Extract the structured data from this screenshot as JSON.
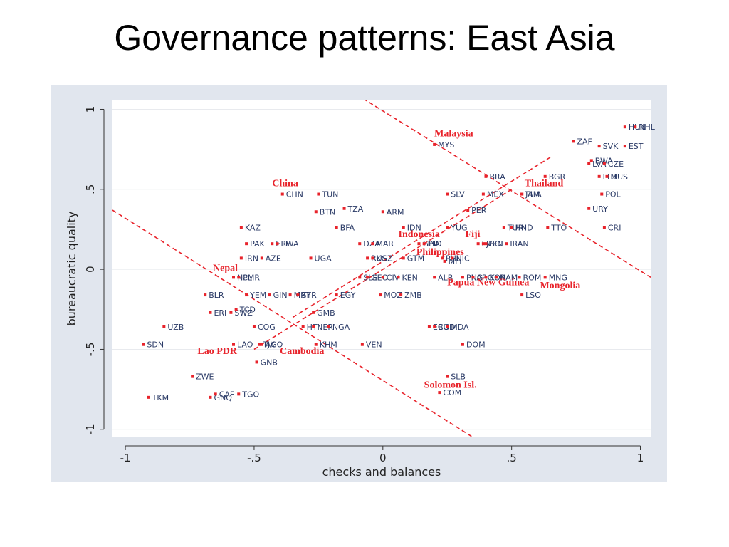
{
  "slide": {
    "title": "Governance patterns: East Asia"
  },
  "chart_data": {
    "type": "scatter",
    "xlabel": "checks and balances",
    "ylabel": "bureaucratic quality",
    "xlim": [
      -1.05,
      1.04
    ],
    "ylim": [
      -1.05,
      1.06
    ],
    "xticks": [
      {
        "v": -1,
        "label": "-1"
      },
      {
        "v": -0.5,
        "label": "-.5"
      },
      {
        "v": 0,
        "label": "0"
      },
      {
        "v": 0.5,
        "label": ".5"
      },
      {
        "v": 1,
        "label": "1"
      }
    ],
    "yticks": [
      {
        "v": -1,
        "label": "-1"
      },
      {
        "v": -0.5,
        "label": "-.5"
      },
      {
        "v": 0,
        "label": "0"
      },
      {
        "v": 0.5,
        "label": ".5"
      },
      {
        "v": 1,
        "label": "1"
      }
    ],
    "grid": true,
    "colors": {
      "points": "#e8232b",
      "labels": "#2a3a66",
      "highlight": "#e8232b",
      "plot_bg": "#ffffff",
      "frame_bg": "#e1e6ee"
    },
    "points": [
      {
        "label": "HUN",
        "x": 0.94,
        "y": 0.89
      },
      {
        "label": "NHL",
        "x": 0.98,
        "y": 0.89
      },
      {
        "label": "EST",
        "x": 0.94,
        "y": 0.77
      },
      {
        "label": "ZAF",
        "x": 0.74,
        "y": 0.8
      },
      {
        "label": "SVK",
        "x": 0.84,
        "y": 0.77
      },
      {
        "label": "BWA",
        "x": 0.81,
        "y": 0.68
      },
      {
        "label": "LVA",
        "x": 0.8,
        "y": 0.66
      },
      {
        "label": "CZE",
        "x": 0.86,
        "y": 0.66
      },
      {
        "label": "LTU",
        "x": 0.84,
        "y": 0.58
      },
      {
        "label": "MUS",
        "x": 0.87,
        "y": 0.58
      },
      {
        "label": "POL",
        "x": 0.85,
        "y": 0.47
      },
      {
        "label": "URY",
        "x": 0.8,
        "y": 0.38
      },
      {
        "label": "CRI",
        "x": 0.86,
        "y": 0.26
      },
      {
        "label": "BGR",
        "x": 0.63,
        "y": 0.58
      },
      {
        "label": "BRA",
        "x": 0.4,
        "y": 0.58
      },
      {
        "label": "MYS",
        "x": 0.2,
        "y": 0.78
      },
      {
        "label": "SLV",
        "x": 0.25,
        "y": 0.47
      },
      {
        "label": "MEX",
        "x": 0.39,
        "y": 0.47
      },
      {
        "label": "THA",
        "x": 0.54,
        "y": 0.47
      },
      {
        "label": "JAM",
        "x": 0.54,
        "y": 0.47
      },
      {
        "label": "PER",
        "x": 0.33,
        "y": 0.37
      },
      {
        "label": "YUG",
        "x": 0.25,
        "y": 0.26
      },
      {
        "label": "TUR",
        "x": 0.47,
        "y": 0.26
      },
      {
        "label": "HND",
        "x": 0.5,
        "y": 0.26
      },
      {
        "label": "TTO",
        "x": 0.64,
        "y": 0.26
      },
      {
        "label": "IDN",
        "x": 0.08,
        "y": 0.26
      },
      {
        "label": "CHN",
        "x": -0.39,
        "y": 0.47
      },
      {
        "label": "TUN",
        "x": -0.25,
        "y": 0.47
      },
      {
        "label": "TZA",
        "x": -0.15,
        "y": 0.38
      },
      {
        "label": "BTN",
        "x": -0.26,
        "y": 0.36
      },
      {
        "label": "ARM",
        "x": 0.0,
        "y": 0.36
      },
      {
        "label": "KAZ",
        "x": -0.55,
        "y": 0.26
      },
      {
        "label": "BFA",
        "x": -0.18,
        "y": 0.26
      },
      {
        "label": "PAK",
        "x": -0.53,
        "y": 0.16
      },
      {
        "label": "ETH",
        "x": -0.43,
        "y": 0.16
      },
      {
        "label": "RWA",
        "x": -0.41,
        "y": 0.16
      },
      {
        "label": "DZA",
        "x": -0.09,
        "y": 0.16
      },
      {
        "label": "MAR",
        "x": -0.04,
        "y": 0.16
      },
      {
        "label": "GHA",
        "x": 0.14,
        "y": 0.16
      },
      {
        "label": "IND",
        "x": 0.16,
        "y": 0.16
      },
      {
        "label": "FJI",
        "x": 0.37,
        "y": 0.16
      },
      {
        "label": "VEN",
        "x": 0.39,
        "y": 0.16
      },
      {
        "label": "BOL",
        "x": 0.4,
        "y": 0.16
      },
      {
        "label": "IRAN",
        "x": 0.48,
        "y": 0.16
      },
      {
        "label": "IRN",
        "x": -0.55,
        "y": 0.07
      },
      {
        "label": "AZE",
        "x": -0.47,
        "y": 0.07
      },
      {
        "label": "UGA",
        "x": -0.28,
        "y": 0.07
      },
      {
        "label": "RUS",
        "x": -0.06,
        "y": 0.07
      },
      {
        "label": "KGZ",
        "x": -0.04,
        "y": 0.07
      },
      {
        "label": "GTM",
        "x": 0.08,
        "y": 0.07
      },
      {
        "label": "PHL",
        "x": 0.23,
        "y": 0.07
      },
      {
        "label": "NIC",
        "x": 0.27,
        "y": 0.07
      },
      {
        "label": "MLI",
        "x": 0.24,
        "y": 0.05
      },
      {
        "label": "NPL",
        "x": -0.58,
        "y": -0.05
      },
      {
        "label": "CMR",
        "x": -0.56,
        "y": -0.05
      },
      {
        "label": "SLE",
        "x": -0.09,
        "y": -0.05
      },
      {
        "label": "GEO",
        "x": -0.06,
        "y": -0.05
      },
      {
        "label": "CIV",
        "x": 0.0,
        "y": -0.05
      },
      {
        "label": "KEN",
        "x": 0.06,
        "y": -0.05
      },
      {
        "label": "ALB",
        "x": 0.2,
        "y": -0.05
      },
      {
        "label": "PNG",
        "x": 0.31,
        "y": -0.05
      },
      {
        "label": "ARG",
        "x": 0.35,
        "y": -0.05
      },
      {
        "label": "KOR",
        "x": 0.4,
        "y": -0.05
      },
      {
        "label": "NAM",
        "x": 0.44,
        "y": -0.05
      },
      {
        "label": "ROM",
        "x": 0.53,
        "y": -0.05
      },
      {
        "label": "MNG",
        "x": 0.63,
        "y": -0.05
      },
      {
        "label": "BLR",
        "x": -0.69,
        "y": -0.16
      },
      {
        "label": "YEM",
        "x": -0.53,
        "y": -0.16
      },
      {
        "label": "GIN",
        "x": -0.44,
        "y": -0.16
      },
      {
        "label": "MRT",
        "x": -0.36,
        "y": -0.16
      },
      {
        "label": "SYR",
        "x": -0.33,
        "y": -0.16
      },
      {
        "label": "EGY",
        "x": -0.18,
        "y": -0.16
      },
      {
        "label": "MOZ",
        "x": -0.01,
        "y": -0.16
      },
      {
        "label": "ZMB",
        "x": 0.07,
        "y": -0.16
      },
      {
        "label": "LSO",
        "x": 0.54,
        "y": -0.16
      },
      {
        "label": "ERI",
        "x": -0.67,
        "y": -0.27
      },
      {
        "label": "SWZ",
        "x": -0.59,
        "y": -0.27
      },
      {
        "label": "TCD",
        "x": -0.57,
        "y": -0.25
      },
      {
        "label": "GMB",
        "x": -0.27,
        "y": -0.27
      },
      {
        "label": "UZB",
        "x": -0.85,
        "y": -0.36
      },
      {
        "label": "COG",
        "x": -0.5,
        "y": -0.36
      },
      {
        "label": "HTI",
        "x": -0.31,
        "y": -0.36
      },
      {
        "label": "NER",
        "x": -0.27,
        "y": -0.36
      },
      {
        "label": "NGA",
        "x": -0.21,
        "y": -0.36
      },
      {
        "label": "ECU",
        "x": 0.18,
        "y": -0.36
      },
      {
        "label": "BGD",
        "x": 0.2,
        "y": -0.36
      },
      {
        "label": "MDA",
        "x": 0.25,
        "y": -0.36
      },
      {
        "label": "SDN",
        "x": -0.93,
        "y": -0.47
      },
      {
        "label": "LAO",
        "x": -0.58,
        "y": -0.47
      },
      {
        "label": "TJK",
        "x": -0.48,
        "y": -0.47
      },
      {
        "label": "AGO",
        "x": -0.47,
        "y": -0.47
      },
      {
        "label": "KHM",
        "x": -0.26,
        "y": -0.47
      },
      {
        "label": "VEN",
        "x": -0.08,
        "y": -0.47
      },
      {
        "label": "DOM",
        "x": 0.31,
        "y": -0.47
      },
      {
        "label": "GNB",
        "x": -0.49,
        "y": -0.58
      },
      {
        "label": "ZWE",
        "x": -0.74,
        "y": -0.67
      },
      {
        "label": "SLB",
        "x": 0.25,
        "y": -0.67
      },
      {
        "label": "COM",
        "x": 0.22,
        "y": -0.77
      },
      {
        "label": "TKM",
        "x": -0.91,
        "y": -0.8
      },
      {
        "label": "GNQ",
        "x": -0.67,
        "y": -0.8
      },
      {
        "label": "CAF",
        "x": -0.65,
        "y": -0.78
      },
      {
        "label": "TGO",
        "x": -0.56,
        "y": -0.78
      }
    ],
    "highlights": [
      {
        "label": "Malaysia",
        "x": 0.2,
        "y": 0.83
      },
      {
        "label": "China",
        "x": -0.43,
        "y": 0.52
      },
      {
        "label": "Thailand",
        "x": 0.55,
        "y": 0.52
      },
      {
        "label": "Indonesia",
        "x": 0.06,
        "y": 0.2
      },
      {
        "label": "Fiji",
        "x": 0.32,
        "y": 0.2
      },
      {
        "label": "Philippines",
        "x": 0.13,
        "y": 0.09
      },
      {
        "label": "Nepal",
        "x": -0.66,
        "y": -0.01
      },
      {
        "label": "Papua New Guinea",
        "x": 0.25,
        "y": -0.1
      },
      {
        "label": "Mongolia",
        "x": 0.61,
        "y": -0.12
      },
      {
        "label": "Lao PDR",
        "x": -0.72,
        "y": -0.53
      },
      {
        "label": "Cambodia",
        "x": -0.4,
        "y": -0.53
      },
      {
        "label": "Solomon Isl.",
        "x": 0.16,
        "y": -0.74
      }
    ],
    "reference_lines": [
      {
        "x1": -0.1,
        "y1": 1.09,
        "x2": 1.04,
        "y2": -0.05
      },
      {
        "x1": -1.05,
        "y1": 0.37,
        "x2": 0.35,
        "y2": -1.05
      },
      {
        "x1": -0.5,
        "y1": -0.5,
        "x2": 0.5,
        "y2": 0.5
      },
      {
        "x1": -0.35,
        "y1": -0.3,
        "x2": 0.65,
        "y2": 0.7
      }
    ]
  }
}
